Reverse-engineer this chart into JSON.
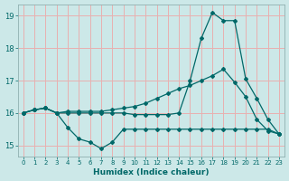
{
  "xlabel": "Humidex (Indice chaleur)",
  "bg_color": "#cce8e8",
  "grid_color": "#e8b0b0",
  "line_color": "#006868",
  "xlim": [
    -0.5,
    23.5
  ],
  "ylim": [
    14.65,
    19.35
  ],
  "yticks": [
    15,
    16,
    17,
    18,
    19
  ],
  "xticks": [
    0,
    1,
    2,
    3,
    4,
    5,
    6,
    7,
    8,
    9,
    10,
    11,
    12,
    13,
    14,
    15,
    16,
    17,
    18,
    19,
    20,
    21,
    22,
    23
  ],
  "line1_x": [
    0,
    1,
    2,
    3,
    4,
    5,
    6,
    7,
    8,
    9,
    10,
    11,
    12,
    13,
    14,
    15,
    16,
    17,
    18,
    19,
    20,
    21,
    22,
    23
  ],
  "line1_y": [
    16.0,
    16.1,
    16.15,
    16.0,
    16.05,
    16.05,
    16.05,
    16.05,
    16.1,
    16.15,
    16.2,
    16.3,
    16.45,
    16.6,
    16.75,
    16.85,
    17.0,
    17.15,
    17.35,
    16.95,
    16.5,
    15.8,
    15.45,
    15.35
  ],
  "line2_x": [
    0,
    1,
    2,
    3,
    4,
    5,
    6,
    7,
    8,
    9,
    10,
    11,
    12,
    13,
    14,
    15,
    16,
    17,
    18,
    19,
    20,
    21,
    22,
    23
  ],
  "line2_y": [
    16.0,
    16.1,
    16.15,
    16.0,
    15.55,
    15.2,
    15.1,
    14.9,
    15.1,
    15.5,
    15.5,
    15.5,
    15.5,
    15.5,
    15.5,
    15.5,
    15.5,
    15.5,
    15.5,
    15.5,
    15.5,
    15.5,
    15.5,
    15.35
  ],
  "line3_x": [
    0,
    1,
    2,
    3,
    4,
    5,
    6,
    7,
    8,
    9,
    10,
    11,
    12,
    13,
    14,
    15,
    16,
    17,
    18,
    19,
    20,
    21,
    22,
    23
  ],
  "line3_y": [
    16.0,
    16.1,
    16.15,
    16.0,
    16.0,
    16.0,
    16.0,
    16.0,
    16.0,
    16.0,
    15.95,
    15.95,
    15.95,
    15.95,
    16.0,
    17.0,
    18.3,
    19.1,
    18.85,
    18.85,
    17.05,
    16.45,
    15.8,
    15.35
  ]
}
